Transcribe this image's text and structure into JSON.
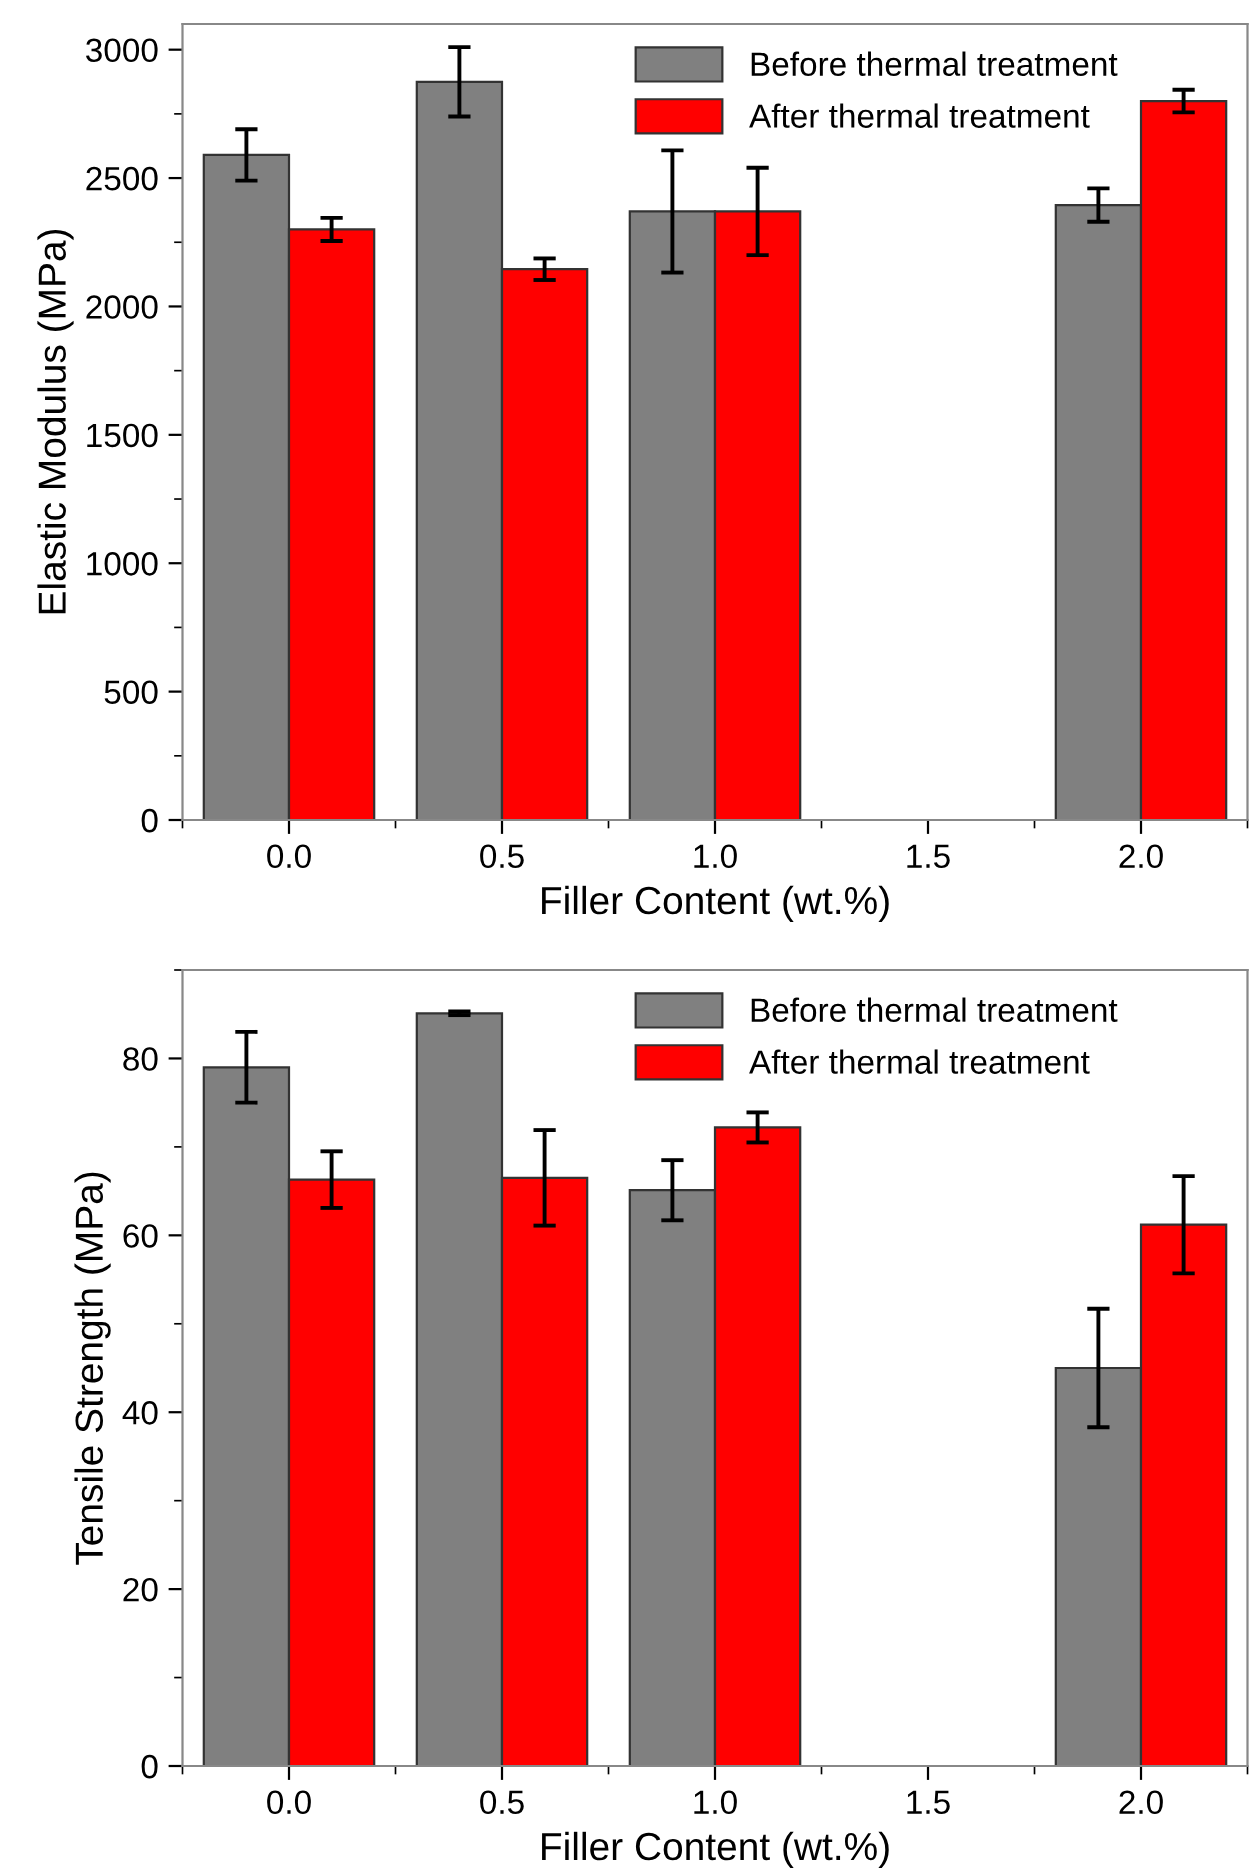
{
  "chart_data": [
    {
      "type": "bar",
      "xlabel": "Filler Content (wt.%)",
      "ylabel": "Elastic Modulus (MPa)",
      "x": [
        0,
        0.5,
        1.0,
        2.0
      ],
      "series": [
        {
          "name": "Before thermal treatment",
          "color": "#808080",
          "values": [
            2590,
            2875,
            2370,
            2395
          ],
          "errors": [
            100,
            135,
            238,
            65
          ]
        },
        {
          "name": "After thermal treatment",
          "color": "#ff0000",
          "values": [
            2300,
            2145,
            2370,
            2800
          ],
          "errors": [
            45,
            42,
            170,
            44
          ]
        }
      ],
      "xlim": [
        -0.25,
        2.25
      ],
      "xticks": [
        {
          "value": 0,
          "label": "0.0"
        },
        {
          "value": 0.5,
          "label": "0.5"
        },
        {
          "value": 1,
          "label": "1.0"
        },
        {
          "value": 1.5,
          "label": "1.5"
        },
        {
          "value": 2,
          "label": "2.0"
        }
      ],
      "ylim": [
        0,
        3100
      ],
      "yticks": [
        0,
        500,
        1000,
        1500,
        2000,
        2500,
        3000
      ],
      "legend": "top right",
      "grid": false
    },
    {
      "type": "bar",
      "xlabel": "Filler Content (wt.%)",
      "ylabel": "Tensile Strength (MPa)",
      "x": [
        0,
        0.5,
        1.0,
        2.0
      ],
      "series": [
        {
          "name": "Before thermal treatment",
          "color": "#808080",
          "values": [
            79.0,
            85.1,
            65.1,
            45.0
          ],
          "errors": [
            4.0,
            0.2,
            3.4,
            6.7
          ]
        },
        {
          "name": "After thermal treatment",
          "color": "#ff0000",
          "values": [
            66.3,
            66.5,
            72.2,
            61.2
          ],
          "errors": [
            3.2,
            5.4,
            1.7,
            5.5
          ]
        }
      ],
      "xlim": [
        -0.25,
        2.25
      ],
      "xticks": [
        {
          "value": 0,
          "label": "0.0"
        },
        {
          "value": 0.5,
          "label": "0.5"
        },
        {
          "value": 1,
          "label": "1.0"
        },
        {
          "value": 1.5,
          "label": "1.5"
        },
        {
          "value": 2,
          "label": "2.0"
        }
      ],
      "ylim": [
        0,
        90
      ],
      "yticks": [
        0,
        20,
        40,
        60,
        80
      ],
      "legend": "top right",
      "grid": false
    }
  ]
}
